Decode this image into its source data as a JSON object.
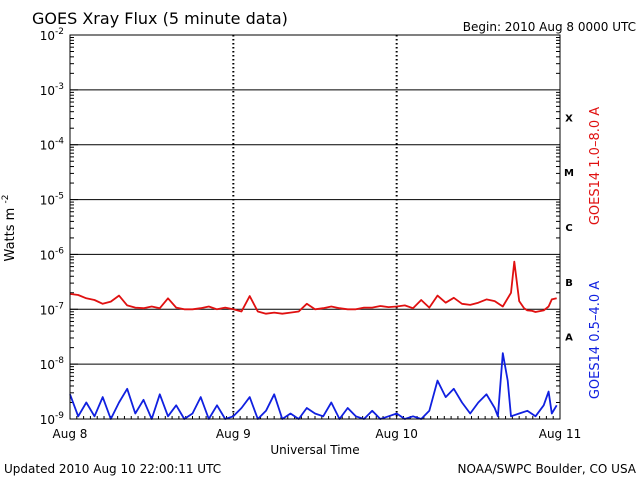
{
  "chart_data": {
    "type": "line",
    "title": "GOES Xray Flux (5 minute data)",
    "begin_text": "Begin:  2010 Aug 8 0000 UTC",
    "xlabel": "Universal Time",
    "ylabel_base": "Watts m",
    "ylabel_exp": "-2",
    "updated_text": "Updated 2010 Aug 10 22:00:11 UTC",
    "credit_text": "NOAA/SWPC Boulder, CO USA",
    "xlim": [
      0,
      3
    ],
    "ylim_log10": [
      -9,
      -2
    ],
    "log_scale_y": true,
    "grid": true,
    "x_ticks": [
      {
        "x": 0,
        "label": "Aug 8"
      },
      {
        "x": 1,
        "label": "Aug 9"
      },
      {
        "x": 2,
        "label": "Aug 10"
      },
      {
        "x": 3,
        "label": "Aug 11"
      }
    ],
    "y_ticks": [
      {
        "exp": -2,
        "base": "10",
        "sup": "-2"
      },
      {
        "exp": -3,
        "base": "10",
        "sup": "-3"
      },
      {
        "exp": -4,
        "base": "10",
        "sup": "-4"
      },
      {
        "exp": -5,
        "base": "10",
        "sup": "-5"
      },
      {
        "exp": -6,
        "base": "10",
        "sup": "-6"
      },
      {
        "exp": -7,
        "base": "10",
        "sup": "-7"
      },
      {
        "exp": -8,
        "base": "10",
        "sup": "-8"
      },
      {
        "exp": -9,
        "base": "10",
        "sup": "-9"
      }
    ],
    "flare_classes": [
      {
        "label": "X",
        "y_log10": -3.5
      },
      {
        "label": "M",
        "y_log10": -4.5
      },
      {
        "label": "C",
        "y_log10": -5.5
      },
      {
        "label": "B",
        "y_log10": -6.5
      },
      {
        "label": "A",
        "y_log10": -7.5
      }
    ],
    "series": [
      {
        "name": "GOES14 1.0–8.0 A",
        "color": "#e01010",
        "x": [
          0.0,
          0.05,
          0.1,
          0.15,
          0.2,
          0.25,
          0.3,
          0.35,
          0.4,
          0.45,
          0.5,
          0.55,
          0.6,
          0.65,
          0.7,
          0.75,
          0.8,
          0.85,
          0.9,
          0.95,
          1.0,
          1.05,
          1.1,
          1.15,
          1.2,
          1.25,
          1.3,
          1.35,
          1.4,
          1.45,
          1.5,
          1.55,
          1.6,
          1.65,
          1.7,
          1.75,
          1.8,
          1.85,
          1.9,
          1.95,
          2.0,
          2.05,
          2.1,
          2.15,
          2.2,
          2.25,
          2.3,
          2.35,
          2.4,
          2.45,
          2.5,
          2.55,
          2.6,
          2.65,
          2.7,
          2.72,
          2.75,
          2.78,
          2.8,
          2.83,
          2.85,
          2.9,
          2.93,
          2.95,
          2.98
        ],
        "y_log10": [
          -6.72,
          -6.74,
          -6.8,
          -6.83,
          -6.9,
          -6.86,
          -6.75,
          -6.93,
          -6.97,
          -6.98,
          -6.95,
          -6.98,
          -6.8,
          -6.97,
          -7.0,
          -7.0,
          -6.98,
          -6.95,
          -7.0,
          -6.97,
          -7.0,
          -7.04,
          -6.76,
          -7.04,
          -7.08,
          -7.06,
          -7.08,
          -7.06,
          -7.04,
          -6.9,
          -7.0,
          -6.98,
          -6.95,
          -6.98,
          -7.0,
          -7.0,
          -6.97,
          -6.97,
          -6.94,
          -6.96,
          -6.95,
          -6.93,
          -6.98,
          -6.83,
          -6.97,
          -6.75,
          -6.88,
          -6.79,
          -6.9,
          -6.92,
          -6.88,
          -6.82,
          -6.85,
          -6.95,
          -6.7,
          -6.13,
          -6.85,
          -6.98,
          -7.02,
          -7.03,
          -7.05,
          -7.02,
          -6.95,
          -6.82,
          -6.8
        ]
      },
      {
        "name": "GOES14 0.5–4.0 A",
        "color": "#1020e0",
        "x": [
          0.0,
          0.05,
          0.1,
          0.15,
          0.2,
          0.25,
          0.3,
          0.35,
          0.4,
          0.45,
          0.5,
          0.55,
          0.6,
          0.65,
          0.7,
          0.75,
          0.8,
          0.85,
          0.9,
          0.95,
          1.0,
          1.05,
          1.1,
          1.15,
          1.2,
          1.25,
          1.3,
          1.35,
          1.4,
          1.45,
          1.5,
          1.55,
          1.6,
          1.65,
          1.7,
          1.75,
          1.8,
          1.85,
          1.9,
          1.95,
          2.0,
          2.05,
          2.1,
          2.15,
          2.2,
          2.25,
          2.3,
          2.35,
          2.4,
          2.45,
          2.5,
          2.55,
          2.6,
          2.62,
          2.65,
          2.68,
          2.7,
          2.75,
          2.8,
          2.85,
          2.9,
          2.93,
          2.95,
          2.98
        ],
        "y_log10": [
          -8.55,
          -8.95,
          -8.7,
          -8.95,
          -8.6,
          -9.0,
          -8.7,
          -8.45,
          -8.9,
          -8.65,
          -9.0,
          -8.55,
          -8.95,
          -8.75,
          -9.0,
          -8.9,
          -8.6,
          -9.0,
          -8.75,
          -9.0,
          -8.95,
          -8.8,
          -8.6,
          -9.0,
          -8.85,
          -8.55,
          -9.0,
          -8.9,
          -9.0,
          -8.8,
          -8.9,
          -8.95,
          -8.7,
          -9.0,
          -8.8,
          -8.95,
          -9.0,
          -8.85,
          -9.0,
          -8.95,
          -8.9,
          -9.0,
          -8.95,
          -9.0,
          -8.85,
          -8.3,
          -8.6,
          -8.45,
          -8.7,
          -8.9,
          -8.7,
          -8.55,
          -8.8,
          -8.95,
          -7.8,
          -8.3,
          -8.95,
          -8.9,
          -8.85,
          -8.95,
          -8.75,
          -8.5,
          -8.9,
          -8.75
        ]
      }
    ]
  }
}
